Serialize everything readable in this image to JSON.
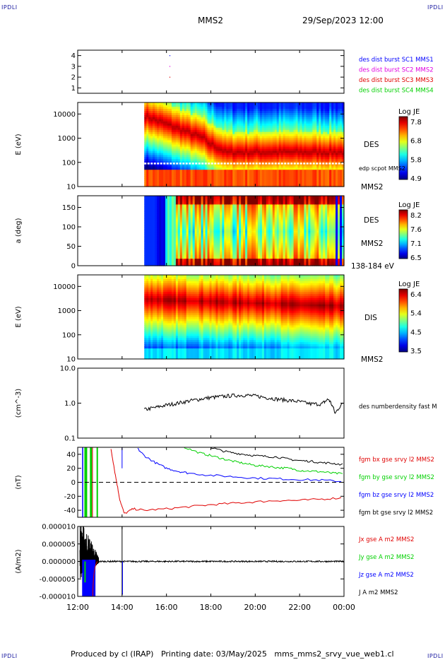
{
  "header": {
    "corner_tl": "IPDLI",
    "corner_tr": "IPDLI",
    "corner_bl": "IPDLI",
    "corner_br": "IPDLI",
    "spacecraft": "MMS2",
    "datetime": "29/Sep/2023 12:00"
  },
  "footer": {
    "text": "Produced by cl (IRAP)   Printing date: 03/May/2025   mms_mms2_srvy_vue_web1.cl"
  },
  "colors": {
    "blue": "#0000ff",
    "magenta": "#e000e0",
    "red": "#e00000",
    "green": "#00d000",
    "black": "#000000"
  },
  "chart_data": [
    {
      "type": "scatter",
      "panel": "burst",
      "y_ticks": [
        "4",
        "3",
        "2",
        "1"
      ],
      "ylim": [
        0.5,
        4.5
      ],
      "legend": [
        {
          "name": "des dist burst SC1 MMS1",
          "color": "#0000ff"
        },
        {
          "name": "des dist burst SC2 MMS2",
          "color": "#e000e0"
        },
        {
          "name": "des dist burst SC3 MMS3",
          "color": "#e00000"
        },
        {
          "name": "des dist burst SC4 MMS4",
          "color": "#00d000"
        }
      ],
      "points": [
        {
          "x": 16.15,
          "y": 4,
          "color": "#0000ff"
        },
        {
          "x": 16.15,
          "y": 3,
          "color": "#e000e0"
        },
        {
          "x": 16.15,
          "y": 2,
          "color": "#e00000"
        }
      ]
    },
    {
      "type": "heatmap",
      "panel": "des_energy",
      "ylabel": "E (eV)",
      "y_ticks": [
        "10000",
        "1000",
        "100",
        "10"
      ],
      "ylog": [
        10,
        30000
      ],
      "data_start": 15.0,
      "side_label": "DES",
      "side_label2": "MMS2",
      "overlay_label": "edp scpot MMS2",
      "colorbar_title": "Log JE",
      "colorbar_ticks": [
        "7.8",
        "6.8",
        "5.8",
        "4.9"
      ],
      "clim": [
        4.9,
        7.9
      ]
    },
    {
      "type": "heatmap",
      "panel": "des_pitch",
      "ylabel": "a (deg)",
      "y_ticks": [
        "150",
        "100",
        "50",
        "0"
      ],
      "ylim": [
        0,
        180
      ],
      "data_start": 15.0,
      "side_label": "DES",
      "side_label2": "MMS2",
      "side_label3": "138-184 eV",
      "colorbar_title": "Log JE",
      "colorbar_ticks": [
        "8.2",
        "7.6",
        "7.1",
        "6.5"
      ],
      "clim": [
        6.5,
        8.3
      ]
    },
    {
      "type": "heatmap",
      "panel": "dis_energy",
      "ylabel": "E (eV)",
      "y_ticks": [
        "10000",
        "1000",
        "100",
        "10"
      ],
      "ylog": [
        10,
        30000
      ],
      "data_start": 15.0,
      "side_label": "DIS",
      "side_label2": "MMS2",
      "colorbar_title": "Log JE",
      "colorbar_ticks": [
        "6.4",
        "5.4",
        "4.5",
        "3.5"
      ],
      "clim": [
        3.5,
        6.5
      ]
    },
    {
      "type": "line",
      "panel": "density",
      "ylabel": "(cm^-3)",
      "y_ticks": [
        "10.0",
        "1.0",
        "0.1"
      ],
      "ylog": [
        0.1,
        10
      ],
      "legend": [
        {
          "name": "des numberdensity fast M",
          "color": "#000000"
        }
      ],
      "x": [
        15.0,
        15.5,
        16.0,
        16.5,
        17.0,
        17.5,
        18.0,
        18.5,
        19.0,
        19.5,
        20.0,
        20.5,
        21.0,
        21.5,
        22.0,
        22.5,
        23.0,
        23.3,
        23.6,
        24.0
      ],
      "y": [
        0.65,
        0.75,
        0.88,
        1.0,
        1.15,
        1.3,
        1.45,
        1.55,
        1.65,
        1.7,
        1.6,
        1.45,
        1.3,
        1.2,
        1.1,
        0.95,
        0.95,
        1.3,
        0.5,
        1.05
      ]
    },
    {
      "type": "line",
      "panel": "fgm",
      "ylabel": "(nT)",
      "y_ticks": [
        "40",
        "20",
        "0",
        "-20",
        "-40"
      ],
      "ylim": [
        -50,
        50
      ],
      "series": [
        {
          "name": "fgm bx gse srvy l2 MMS2",
          "color": "#e00000",
          "x": [
            13.5,
            13.7,
            13.9,
            14.1,
            14.5,
            15.0,
            16.0,
            17.0,
            18.0,
            19.0,
            20.0,
            21.0,
            22.0,
            23.0,
            24.0
          ],
          "y": [
            48,
            10,
            -25,
            -45,
            -38,
            -40,
            -38,
            -35,
            -32,
            -30,
            -28,
            -26,
            -26,
            -24,
            -22
          ]
        },
        {
          "name": "fgm by gse srvy l2 MMS2",
          "color": "#00d000",
          "x": [
            16.8,
            17.5,
            18.0,
            18.5,
            19.0,
            19.5,
            20.0,
            20.5,
            21.0,
            21.5,
            22.0,
            22.5,
            23.0,
            23.5,
            24.0
          ],
          "y": [
            50,
            42,
            38,
            34,
            30,
            27,
            24,
            23,
            21,
            20,
            17,
            16,
            15,
            13,
            12
          ]
        },
        {
          "name": "fgm bz gse srvy l2 MMS2",
          "color": "#0000ff",
          "x": [
            14.7,
            15.0,
            15.5,
            16.0,
            16.5,
            17.0,
            18.0,
            19.0,
            20.0,
            21.0,
            22.0,
            23.0,
            24.0
          ],
          "y": [
            48,
            38,
            28,
            20,
            16,
            13,
            10,
            8,
            6,
            5,
            4,
            3,
            1
          ]
        },
        {
          "name": "fgm bt gse srvy l2 MMS2",
          "color": "#000000",
          "x": [
            18.0,
            18.5,
            19.0,
            19.5,
            20.0,
            20.5,
            21.0,
            21.5,
            22.0,
            22.5,
            23.0,
            23.5,
            24.0
          ],
          "y": [
            50,
            45,
            42,
            40,
            38,
            37,
            36,
            33,
            31,
            30,
            28,
            27,
            25
          ]
        }
      ]
    },
    {
      "type": "line",
      "panel": "current",
      "ylabel": "(A/m2)",
      "y_ticks": [
        "0.000010",
        "0.000005",
        "0.000000",
        "-0.000005",
        "-0.000010"
      ],
      "ylim": [
        -1e-05,
        1e-05
      ],
      "series": [
        {
          "name": "Jx gse A m2 MMS2",
          "color": "#e00000"
        },
        {
          "name": "Jy gse A m2 MMS2",
          "color": "#00d000"
        },
        {
          "name": "Jz gse A m2 MMS2",
          "color": "#0000ff"
        },
        {
          "name": "J A m2 MMS2",
          "color": "#000000"
        }
      ]
    }
  ],
  "x_axis": {
    "range": [
      12,
      24
    ],
    "ticks": [
      {
        "t": 12,
        "label": "12:00"
      },
      {
        "t": 14,
        "label": "14:00"
      },
      {
        "t": 16,
        "label": "16:00"
      },
      {
        "t": 18,
        "label": "18:00"
      },
      {
        "t": 20,
        "label": "20:00"
      },
      {
        "t": 22,
        "label": "22:00"
      },
      {
        "t": 24,
        "label": "00:00"
      }
    ]
  }
}
